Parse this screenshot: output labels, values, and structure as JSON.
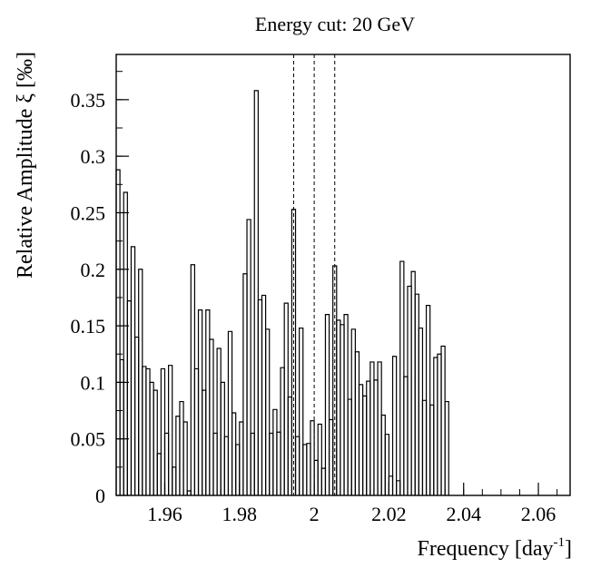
{
  "chart_data": {
    "type": "bar",
    "style": "step-histogram",
    "title": "Energy cut: 20 GeV",
    "xlabel": "Frequency [day",
    "xlabel_sup": "-1",
    "xlabel_end": "]",
    "ylabel": "Relative Amplitude ξ [‰]",
    "xlim": [
      1.947,
      2.0685
    ],
    "ylim": [
      0,
      0.39
    ],
    "xticks": [
      1.96,
      1.98,
      2.0,
      2.02,
      2.04,
      2.06
    ],
    "xtick_labels": [
      "1.96",
      "1.98",
      "2",
      "2.02",
      "2.04",
      "2.06"
    ],
    "yticks": [
      0,
      0.05,
      0.1,
      0.15,
      0.2,
      0.25,
      0.3,
      0.35
    ],
    "ytick_labels": [
      "0",
      "0.05",
      "0.1",
      "0.15",
      "0.2",
      "0.25",
      "0.3",
      "0.35"
    ],
    "x_minor_step": 0.005,
    "y_minor_step": 0.025,
    "grid": false,
    "vertical_lines": [
      1.9945,
      2.0,
      2.0055
    ],
    "bin_start": 1.947,
    "bin_width": 0.001,
    "values": [
      0.288,
      0.12,
      0.268,
      0.172,
      0.22,
      0.14,
      0.2,
      0.114,
      0.112,
      0.1,
      0.093,
      0.037,
      0.112,
      0.055,
      0.115,
      0.025,
      0.07,
      0.083,
      0.065,
      0.004,
      0.204,
      0.112,
      0.164,
      0.093,
      0.164,
      0.138,
      0.055,
      0.13,
      0.1,
      0.052,
      0.145,
      0.073,
      0.045,
      0.065,
      0.196,
      0.244,
      0.055,
      0.358,
      0.173,
      0.177,
      0.147,
      0.055,
      0.076,
      0.056,
      0.113,
      0.17,
      0.087,
      0.253,
      0.052,
      0.148,
      0.045,
      0.046,
      0.066,
      0.031,
      0.063,
      0.024,
      0.16,
      0.067,
      0.203,
      0.155,
      0.151,
      0.16,
      0.085,
      0.147,
      0.127,
      0.098,
      0.088,
      0.101,
      0.118,
      0.102,
      0.118,
      0.071,
      0.054,
      0.017,
      0.123,
      0.013,
      0.207,
      0.105,
      0.185,
      0.198,
      0.178,
      0.148,
      0.084,
      0.168,
      0.08,
      0.122,
      0.125,
      0.132,
      0.083
    ]
  }
}
